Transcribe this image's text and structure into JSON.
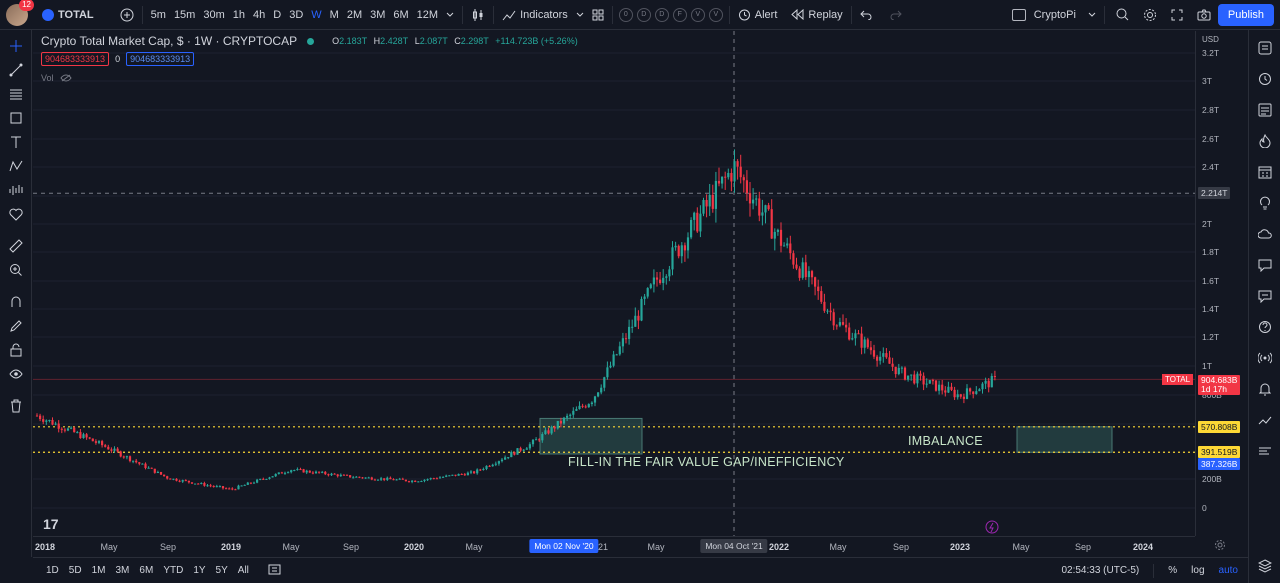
{
  "topbar": {
    "notifications": "12",
    "symbol": "TOTAL",
    "timeframes": [
      "5m",
      "15m",
      "30m",
      "1h",
      "4h",
      "D",
      "3D",
      "W",
      "M",
      "2M",
      "3M",
      "6M",
      "12M"
    ],
    "active_timeframe": "W",
    "indicators_label": "Indicators",
    "circle_buttons": [
      "0",
      "D",
      "D",
      "F",
      "V",
      "V"
    ],
    "alert_label": "Alert",
    "replay_label": "Replay",
    "layout_name": "CryptoPi",
    "publish_label": "Publish"
  },
  "legend": {
    "title": "Crypto Total Market Cap, $ · 1W · CRYPTOCAP",
    "o_key": "O",
    "o_val": "2.183T",
    "h_key": "H",
    "h_val": "2.428T",
    "l_key": "L",
    "l_val": "2.087T",
    "c_key": "C",
    "c_val": "2.298T",
    "change": "+114.723B (+5.26%)",
    "pill_left": "904683333913",
    "pill_mid": "0",
    "pill_right": "904683333913",
    "vol_label": "Vol"
  },
  "yaxis": {
    "currency": "USD",
    "labels": [
      "3.2T",
      "3T",
      "2.8T",
      "2.6T",
      "2.4T",
      "2.2T",
      "2T",
      "1.8T",
      "1.6T",
      "1.4T",
      "1.2T",
      "1T",
      "800B",
      "600B",
      "200B",
      "0"
    ],
    "crosshair_price": "2.214T",
    "symbol_tag": "TOTAL",
    "last_price": "904.683B",
    "countdown": "1d 17h",
    "level_upper": "570.808B",
    "level_lower": "391.519B",
    "level_low_tag": "387.326B"
  },
  "xaxis": {
    "labels": [
      "2018",
      "May",
      "Sep",
      "2019",
      "May",
      "Sep",
      "2020",
      "May",
      "21",
      "May",
      "2022",
      "May",
      "Sep",
      "2023",
      "May",
      "Sep",
      "2024"
    ],
    "highlight_left": "Mon 02 Nov '20",
    "highlight_crosshair": "Mon 04 Oct '21"
  },
  "annotations": {
    "fvg": "FILL-IN THE FAIR VALUE GAP/INEFFICIENCY",
    "imbalance": "IMBALANCE"
  },
  "bottombar": {
    "ranges": [
      "1D",
      "5D",
      "1M",
      "3M",
      "6M",
      "YTD",
      "1Y",
      "5Y",
      "All"
    ],
    "time": "02:54:33 (UTC-5)",
    "percent": "%",
    "log": "log",
    "auto": "auto"
  },
  "colors": {
    "up": "#26a69a",
    "down": "#f23645",
    "accent": "#2962ff",
    "level": "#fdd835",
    "zone": "#2f5a55"
  },
  "chart_data": {
    "type": "candlestick",
    "interval": "1W",
    "x": [
      "2018",
      "2018-05",
      "2018-09",
      "2019",
      "2019-05",
      "2019-09",
      "2020",
      "2020-05",
      "2020-11",
      "2021",
      "2021-05",
      "2021-10",
      "2022",
      "2022-05",
      "2022-09",
      "2023",
      "2023-04"
    ],
    "close": [
      0.65,
      0.42,
      0.21,
      0.13,
      0.27,
      0.22,
      0.19,
      0.25,
      0.45,
      0.77,
      1.6,
      2.4,
      1.9,
      1.3,
      0.95,
      0.79,
      0.9
    ],
    "ylim": [
      0,
      3.2
    ],
    "yunit": "T",
    "horizontal_levels": [
      0.571,
      0.392
    ],
    "crosshair": 2.214
  }
}
